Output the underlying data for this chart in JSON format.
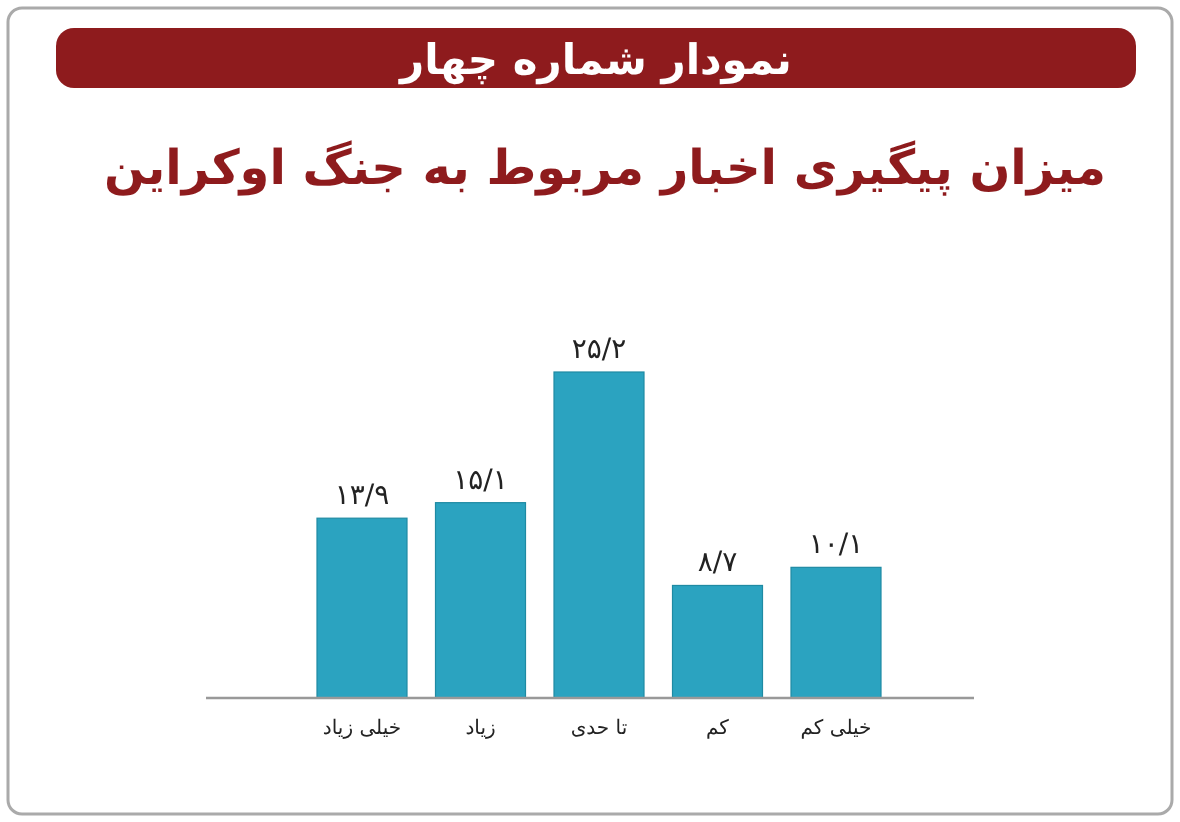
{
  "chart_data": {
    "type": "bar",
    "title": "نمودار شماره چهار",
    "subtitle": "میزان پیگیری اخبار مربوط به جنگ اوکراین",
    "categories": [
      "خیلی زیاد",
      "زیاد",
      "تا حدی",
      "کم",
      "خیلی کم"
    ],
    "values": [
      13.9,
      15.1,
      25.2,
      8.7,
      10.1
    ],
    "value_labels": [
      "۱۳/۹",
      "۱۵/۱",
      "۲۵/۲",
      "۸/۷",
      "۱۰/۱"
    ],
    "color": "#2ba3c0"
  }
}
